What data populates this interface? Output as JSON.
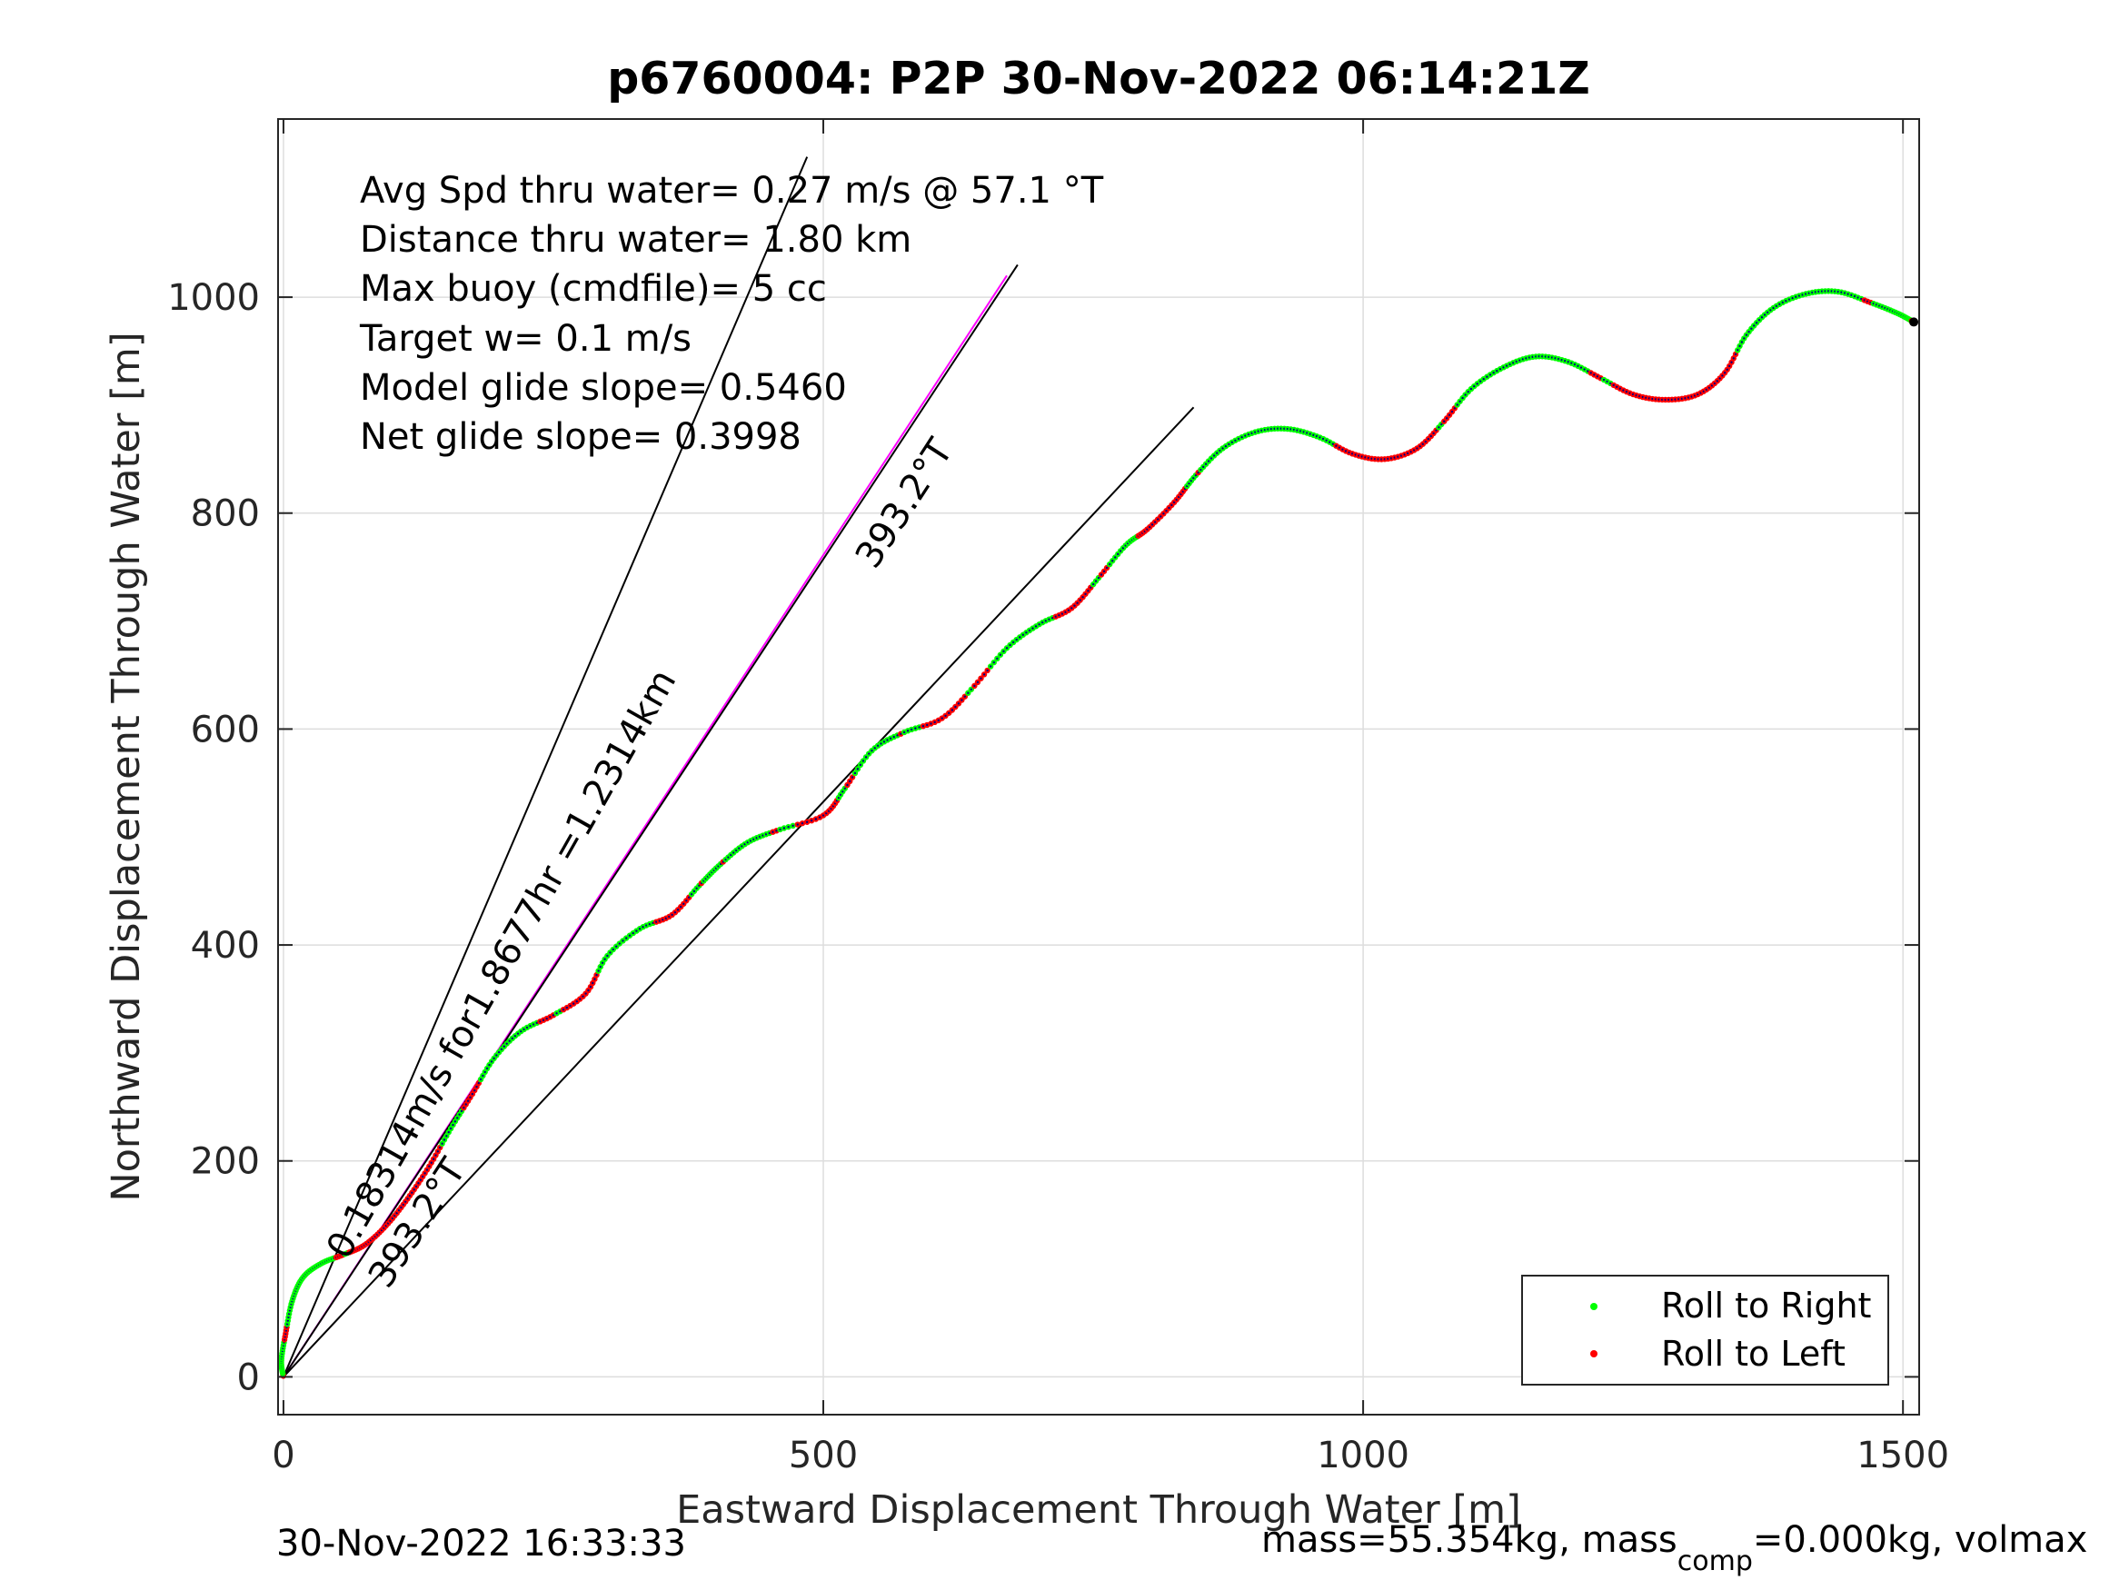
{
  "chart_data": {
    "type": "scatter",
    "title": "p6760004: P2P 30-Nov-2022 06:14:21Z",
    "xlabel": "Eastward Displacement Through Water [m]",
    "ylabel": "Northward Displacement Through Water [m]",
    "xlim": [
      -5,
      1515
    ],
    "ylim": [
      -35,
      1165
    ],
    "xticks": [
      0,
      500,
      1000,
      1500
    ],
    "yticks": [
      0,
      200,
      400,
      600,
      800,
      1000
    ],
    "grid": true,
    "legend_position": "bottom-right",
    "colors": {
      "roll_right": "#00ff00",
      "roll_left": "#ff0000",
      "track": "#0000ff",
      "magenta_line": "#ff00ff",
      "black_line": "#000000",
      "grid": "#dddddd",
      "axes": "#262626"
    },
    "annotations_block": [
      "Avg Spd thru water=  0.27 m/s @  57.1 °T",
      "Distance thru water=  1.80 km",
      "Max buoy (cmdfile)= 5 cc",
      "Target w= 0.1 m/s",
      "Model glide slope= 0.5460",
      "Net glide slope= 0.3998"
    ],
    "rotated_labels": {
      "speed_label": "0.18314m/s for1.8677hr =1.2314km",
      "heading_upper": "393.2°T",
      "heading_lower": "393.2°T"
    },
    "reference_lines": [
      {
        "name": "steep",
        "color": "black",
        "x": [
          0,
          485
        ],
        "y": [
          0,
          1130
        ]
      },
      {
        "name": "magenta",
        "color": "magenta",
        "x": [
          0,
          670
        ],
        "y": [
          0,
          1020
        ]
      },
      {
        "name": "mid",
        "color": "black",
        "x": [
          0,
          680
        ],
        "y": [
          0,
          1030
        ]
      },
      {
        "name": "net",
        "color": "black",
        "x": [
          0,
          843
        ],
        "y": [
          0,
          898
        ]
      }
    ],
    "series": [
      {
        "name": "Roll to Right",
        "role": "right"
      },
      {
        "name": "Roll to Left",
        "role": "left"
      }
    ],
    "track_points": [
      [
        0,
        0
      ],
      [
        -2,
        15
      ],
      [
        2,
        40
      ],
      [
        8,
        70
      ],
      [
        18,
        92
      ],
      [
        35,
        105
      ],
      [
        55,
        113
      ],
      [
        75,
        122
      ],
      [
        95,
        140
      ],
      [
        115,
        165
      ],
      [
        135,
        195
      ],
      [
        155,
        230
      ],
      [
        175,
        262
      ],
      [
        195,
        295
      ],
      [
        220,
        320
      ],
      [
        250,
        335
      ],
      [
        280,
        355
      ],
      [
        300,
        390
      ],
      [
        330,
        415
      ],
      [
        360,
        428
      ],
      [
        385,
        455
      ],
      [
        405,
        475
      ],
      [
        430,
        495
      ],
      [
        460,
        507
      ],
      [
        500,
        520
      ],
      [
        520,
        545
      ],
      [
        545,
        580
      ],
      [
        575,
        597
      ],
      [
        610,
        610
      ],
      [
        640,
        640
      ],
      [
        670,
        675
      ],
      [
        700,
        697
      ],
      [
        730,
        712
      ],
      [
        755,
        740
      ],
      [
        780,
        770
      ],
      [
        800,
        785
      ],
      [
        825,
        810
      ],
      [
        845,
        835
      ],
      [
        870,
        860
      ],
      [
        900,
        875
      ],
      [
        930,
        878
      ],
      [
        960,
        870
      ],
      [
        990,
        855
      ],
      [
        1020,
        850
      ],
      [
        1050,
        860
      ],
      [
        1075,
        885
      ],
      [
        1100,
        915
      ],
      [
        1130,
        935
      ],
      [
        1160,
        945
      ],
      [
        1190,
        940
      ],
      [
        1220,
        925
      ],
      [
        1250,
        910
      ],
      [
        1280,
        905
      ],
      [
        1310,
        910
      ],
      [
        1335,
        930
      ],
      [
        1355,
        965
      ],
      [
        1380,
        990
      ],
      [
        1410,
        1003
      ],
      [
        1440,
        1005
      ],
      [
        1470,
        995
      ],
      [
        1495,
        985
      ],
      [
        1510,
        977
      ]
    ],
    "legend": [
      {
        "label": "Roll to Right",
        "color": "#00ff00"
      },
      {
        "label": "Roll to Left",
        "color": "#ff0000"
      }
    ]
  },
  "footer": {
    "timestamp": "30-Nov-2022 16:33:33",
    "mass_text_pre": "mass=55.354kg, mass",
    "mass_sub": "comp",
    "mass_text_post": "=0.000kg, volmax"
  }
}
